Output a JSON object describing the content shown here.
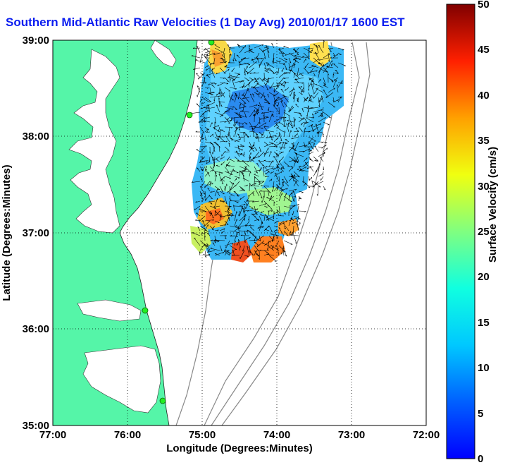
{
  "title": "Southern Mid-Atlantic Raw Velocities (1 Day Avg) 2010/01/17 1600 EST",
  "axes": {
    "xlabel": "Longitude (Degrees:Minutes)",
    "ylabel": "Latitude (Degrees:Minutes)",
    "x_ticks": [
      "77:00",
      "76:00",
      "75:00",
      "74:00",
      "73:00",
      "72:00"
    ],
    "y_ticks": [
      "39:00",
      "38:00",
      "37:00",
      "36:00",
      "35:00"
    ],
    "grid": "dotted"
  },
  "colorbar": {
    "label": "Surface Velocity (cm/s)",
    "ticks": [
      "0",
      "5",
      "10",
      "15",
      "20",
      "25",
      "30",
      "35",
      "40",
      "45",
      "50"
    ],
    "min": 0,
    "max": 50
  },
  "colors": {
    "land": "#55f5a8",
    "title": "#0a1cf0",
    "ocean": "#ffffff",
    "stations": "#22ee22"
  },
  "legend": "none"
}
